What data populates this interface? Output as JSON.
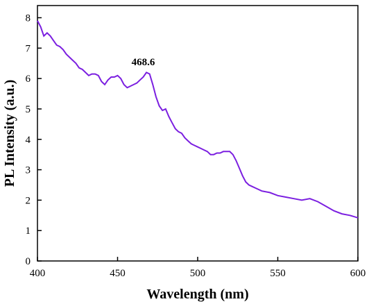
{
  "chart_data": {
    "type": "line",
    "xlabel": "Wavelength (nm)",
    "ylabel": "PL Intensity (a.u.)",
    "xlim": [
      400,
      600
    ],
    "ylim": [
      0,
      8.4
    ],
    "x_ticks": [
      400,
      450,
      500,
      550,
      600
    ],
    "y_ticks": [
      0,
      1,
      2,
      3,
      4,
      5,
      6,
      7,
      8
    ],
    "grid": false,
    "legend": "none",
    "line_color": "#7B1FE0",
    "annotations": [
      {
        "text": "468.6",
        "x": 468.6,
        "y": 6.25
      }
    ],
    "series": [
      {
        "x": [
          400,
          402,
          404,
          406,
          408,
          410,
          412,
          414,
          416,
          418,
          420,
          422,
          424,
          426,
          428,
          430,
          432,
          434,
          436,
          438,
          440,
          442,
          444,
          446,
          448,
          450,
          452,
          454,
          456,
          458,
          460,
          462,
          464,
          466,
          468,
          470,
          472,
          474,
          476,
          478,
          480,
          482,
          484,
          486,
          488,
          490,
          492,
          494,
          496,
          498,
          500,
          502,
          504,
          506,
          508,
          510,
          512,
          514,
          516,
          518,
          520,
          522,
          524,
          526,
          528,
          530,
          532,
          534,
          536,
          538,
          540,
          545,
          550,
          555,
          560,
          565,
          570,
          575,
          580,
          585,
          590,
          595,
          600
        ],
        "y": [
          7.9,
          7.7,
          7.4,
          7.5,
          7.4,
          7.25,
          7.1,
          7.05,
          6.95,
          6.8,
          6.7,
          6.6,
          6.5,
          6.35,
          6.3,
          6.2,
          6.1,
          6.15,
          6.15,
          6.1,
          5.9,
          5.8,
          5.95,
          6.05,
          6.05,
          6.1,
          6.0,
          5.8,
          5.7,
          5.75,
          5.8,
          5.85,
          5.95,
          6.05,
          6.2,
          6.15,
          5.8,
          5.4,
          5.1,
          4.95,
          5.0,
          4.75,
          4.55,
          4.35,
          4.25,
          4.2,
          4.05,
          3.95,
          3.85,
          3.8,
          3.75,
          3.7,
          3.65,
          3.6,
          3.5,
          3.5,
          3.55,
          3.55,
          3.6,
          3.6,
          3.6,
          3.5,
          3.3,
          3.05,
          2.8,
          2.6,
          2.5,
          2.45,
          2.4,
          2.35,
          2.3,
          2.25,
          2.15,
          2.1,
          2.05,
          2.0,
          2.05,
          1.95,
          1.8,
          1.65,
          1.55,
          1.5,
          1.42
        ]
      }
    ]
  }
}
